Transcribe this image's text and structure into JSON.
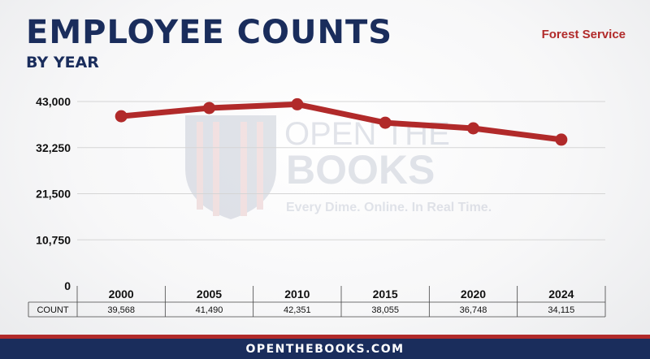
{
  "header": {
    "title": "EMPLOYEE COUNTS",
    "subtitle": "BY YEAR",
    "agency": "Forest Service"
  },
  "watermark": {
    "line1": "OPEN THE",
    "line2": "BOOKS",
    "tagline": "Every Dime. Online. In Real Time."
  },
  "footer": {
    "site": "OPENTHEBOOKS.COM"
  },
  "colors": {
    "line": "#b12a2a",
    "navy": "#1a2d5c",
    "grid": "#d5d5d5"
  },
  "chart_data": {
    "type": "line",
    "categories": [
      "2000",
      "2005",
      "2010",
      "2015",
      "2020",
      "2024"
    ],
    "values": [
      39568,
      41490,
      42351,
      38055,
      36748,
      34115
    ],
    "value_labels": [
      "39,568",
      "41,490",
      "42,351",
      "38,055",
      "36,748",
      "34,115"
    ],
    "row_label": "COUNT",
    "ylim": [
      0,
      43000
    ],
    "yticks": [
      0,
      10750,
      21500,
      32250,
      43000
    ],
    "ytick_labels": [
      "0",
      "10,750",
      "21,500",
      "32,250",
      "43,000"
    ],
    "grid": true
  }
}
